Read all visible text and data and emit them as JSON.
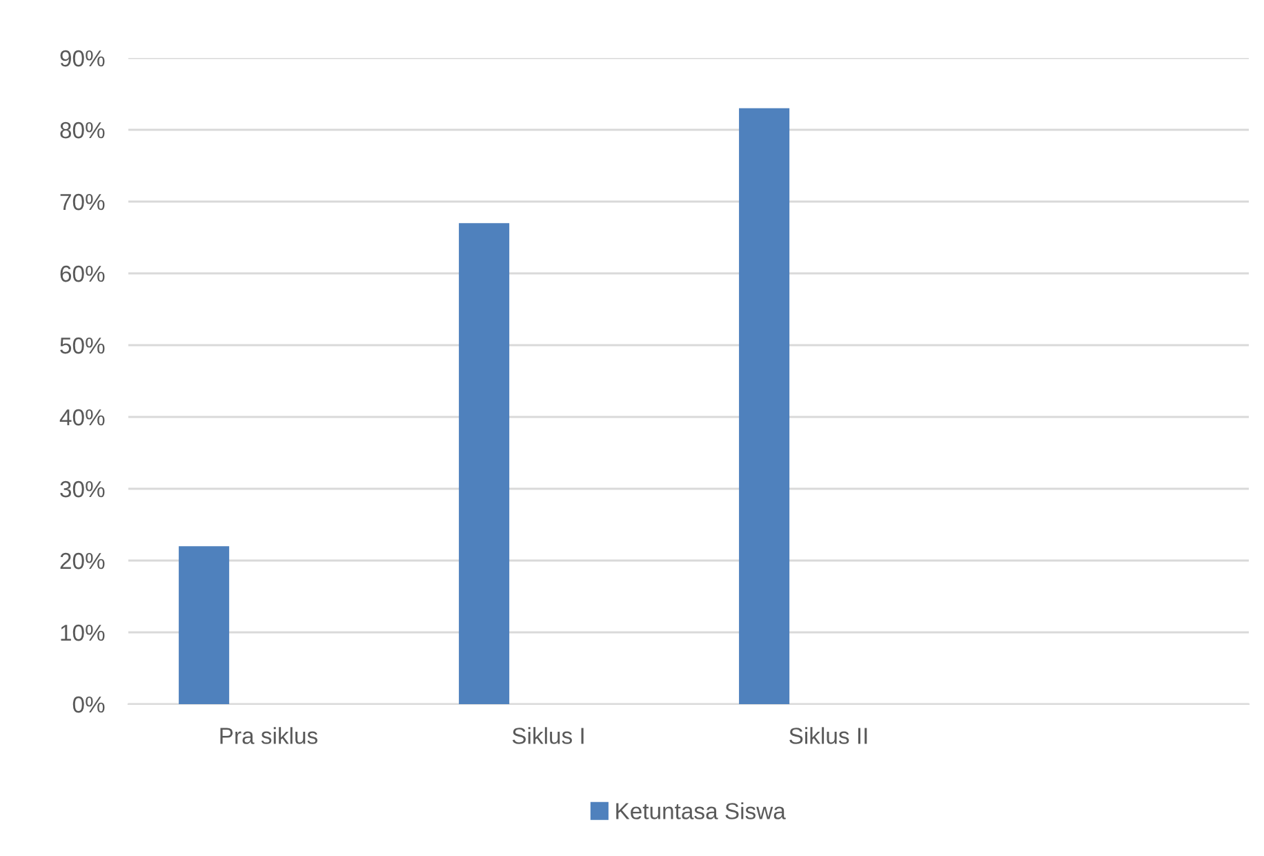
{
  "chart_data": {
    "type": "bar",
    "categories": [
      "Pra siklus",
      "Siklus I",
      "Siklus II",
      null
    ],
    "series": [
      {
        "name": "Ketuntasa Siswa",
        "color": "#4f81bd",
        "values": [
          22,
          67,
          83,
          null
        ]
      }
    ],
    "ylim": [
      0,
      90
    ],
    "yticks": [
      {
        "value": 0,
        "label": "0%"
      },
      {
        "value": 10,
        "label": "10%"
      },
      {
        "value": 20,
        "label": "20%"
      },
      {
        "value": 30,
        "label": "30%"
      },
      {
        "value": 40,
        "label": "40%"
      },
      {
        "value": 50,
        "label": "50%"
      },
      {
        "value": 60,
        "label": "60%"
      },
      {
        "value": 70,
        "label": "70%"
      },
      {
        "value": 80,
        "label": "80%"
      },
      {
        "value": 90,
        "label": "90%"
      }
    ],
    "grid": "y",
    "legend": "bottom"
  }
}
